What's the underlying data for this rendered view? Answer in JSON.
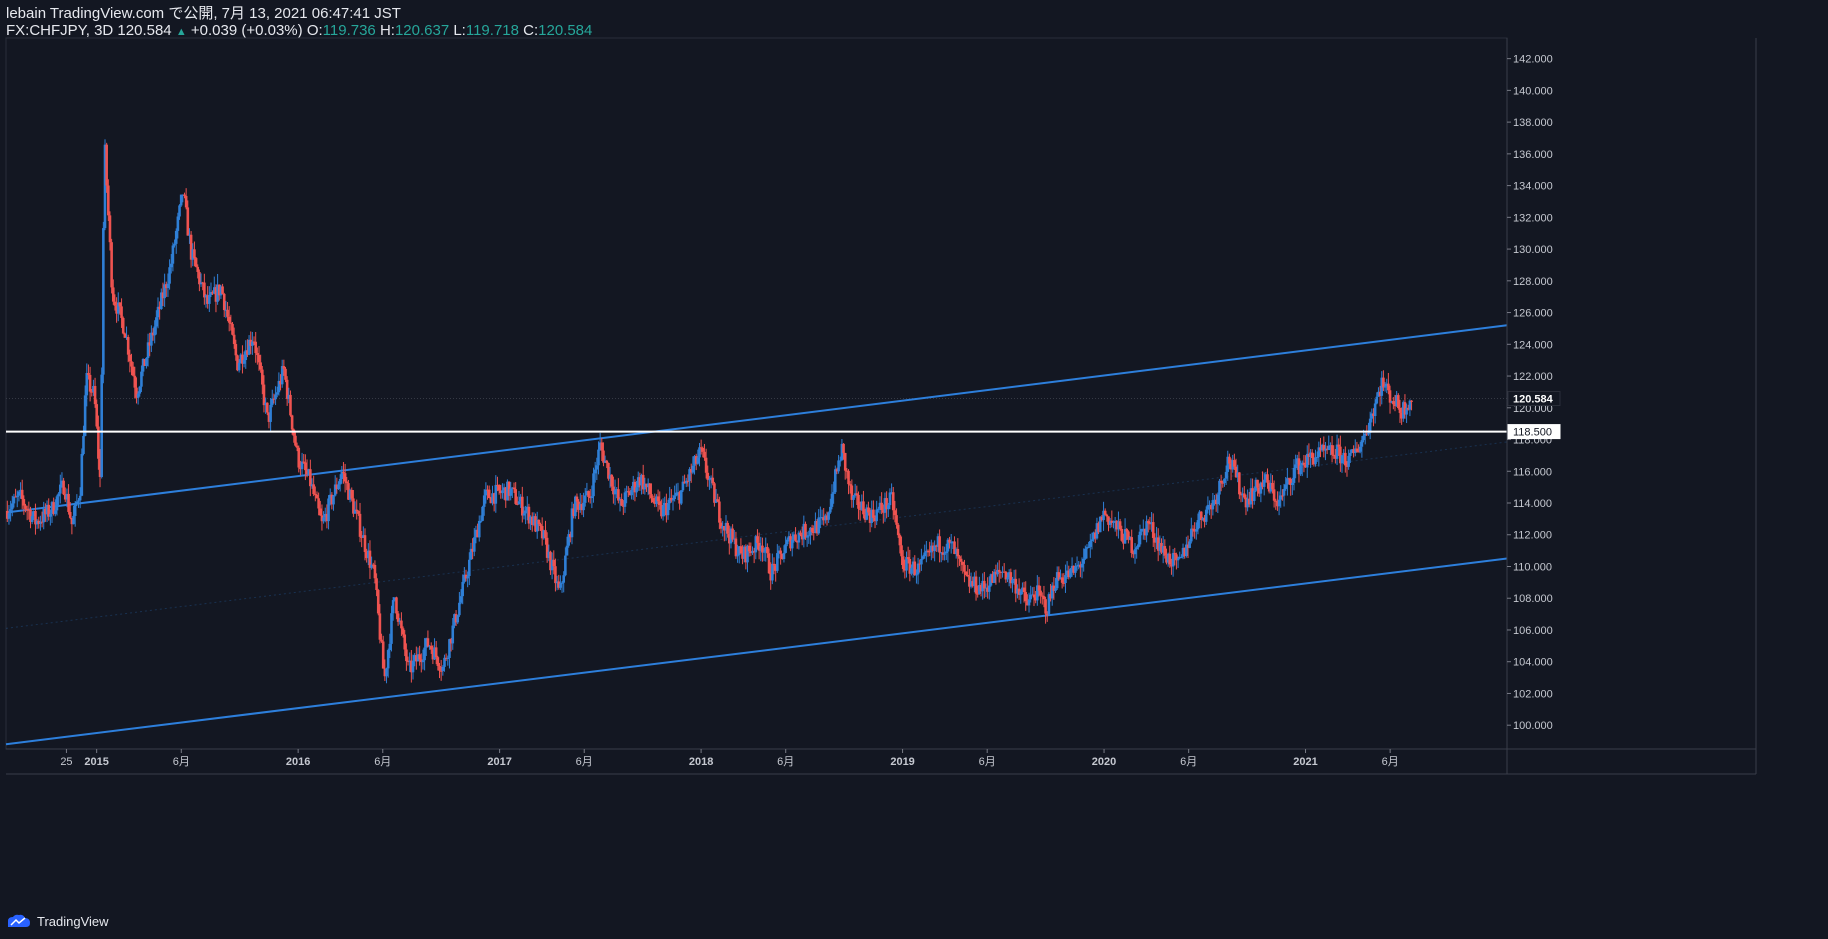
{
  "header": {
    "line1": "lebain TradingView.com で公開, 7月 13, 2021 06:47:41 JST",
    "symbol": "FX:CHFJPY, 3D",
    "last": "120.584",
    "change": "+0.039 (+0.03%)",
    "o_label": "O:",
    "o_value": "119.736",
    "h_label": "H:",
    "h_value": "120.637",
    "l_label": "L:",
    "l_value": "119.718",
    "c_label": "C:",
    "c_value": "120.584"
  },
  "footer": {
    "brand": "TradingView"
  },
  "colors": {
    "background": "#131722",
    "up": "#2f7fd6",
    "down": "#ef5350",
    "trendline": "#2d7fdc",
    "hline": "#ffffff",
    "axis_text": "#c5c8d0",
    "teal": "#26a69a"
  },
  "chart_data": {
    "type": "candlestick",
    "symbol": "FX:CHFJPY",
    "timeframe": "3D",
    "ylim": [
      98.5,
      143.3
    ],
    "y_ticks": [
      100,
      102,
      104,
      106,
      108,
      110,
      112,
      114,
      116,
      118,
      120,
      122,
      124,
      126,
      128,
      130,
      132,
      134,
      136,
      138,
      140,
      142
    ],
    "x_ticks": [
      {
        "label": "25",
        "t": 2014.85
      },
      {
        "label": "2015",
        "t": 2015.0
      },
      {
        "label": "6月",
        "t": 2015.42
      },
      {
        "label": "2016",
        "t": 2016.0
      },
      {
        "label": "6月",
        "t": 2016.42
      },
      {
        "label": "2017",
        "t": 2017.0
      },
      {
        "label": "6月",
        "t": 2017.42
      },
      {
        "label": "2018",
        "t": 2018.0
      },
      {
        "label": "6月",
        "t": 2018.42
      },
      {
        "label": "2019",
        "t": 2019.0
      },
      {
        "label": "6月",
        "t": 2019.42
      },
      {
        "label": "2020",
        "t": 2020.0
      },
      {
        "label": "6月",
        "t": 2020.42
      },
      {
        "label": "2021",
        "t": 2021.0
      },
      {
        "label": "6月",
        "t": 2021.42
      }
    ],
    "price_labels": [
      {
        "value": 120.584,
        "text": "120.584",
        "style": "last"
      },
      {
        "value": 118.5,
        "text": "118.500",
        "style": "hline"
      }
    ],
    "horizontal_lines": [
      118.5
    ],
    "trendlines": [
      {
        "name": "channel-upper",
        "t1": 2014.55,
        "p1": 113.4,
        "t2": 2022.0,
        "p2": 125.2
      },
      {
        "name": "channel-lower",
        "t1": 2014.55,
        "p1": 98.8,
        "t2": 2022.0,
        "p2": 110.5
      },
      {
        "name": "channel-mid",
        "t1": 2014.55,
        "p1": 106.1,
        "t2": 2022.0,
        "p2": 117.85,
        "faint": true
      }
    ],
    "price_path": [
      [
        2014.55,
        113.5
      ],
      [
        2014.62,
        114.4
      ],
      [
        2014.7,
        112.8
      ],
      [
        2014.78,
        113.6
      ],
      [
        2014.84,
        115.2
      ],
      [
        2014.88,
        112.6
      ],
      [
        2014.92,
        115.0
      ],
      [
        2014.95,
        121.8
      ],
      [
        2014.99,
        120.8
      ],
      [
        2015.02,
        115.2
      ],
      [
        2015.04,
        136.8
      ],
      [
        2015.08,
        127.2
      ],
      [
        2015.14,
        125.0
      ],
      [
        2015.2,
        121.0
      ],
      [
        2015.3,
        125.6
      ],
      [
        2015.37,
        129.0
      ],
      [
        2015.43,
        133.6
      ],
      [
        2015.47,
        129.8
      ],
      [
        2015.55,
        126.5
      ],
      [
        2015.62,
        127.6
      ],
      [
        2015.7,
        122.8
      ],
      [
        2015.78,
        124.6
      ],
      [
        2015.85,
        119.2
      ],
      [
        2015.93,
        122.4
      ],
      [
        2016.0,
        116.8
      ],
      [
        2016.06,
        115.4
      ],
      [
        2016.12,
        112.6
      ],
      [
        2016.22,
        116.0
      ],
      [
        2016.3,
        112.8
      ],
      [
        2016.38,
        109.4
      ],
      [
        2016.43,
        102.8
      ],
      [
        2016.48,
        108.2
      ],
      [
        2016.55,
        103.4
      ],
      [
        2016.65,
        105.2
      ],
      [
        2016.72,
        103.6
      ],
      [
        2016.82,
        108.6
      ],
      [
        2016.93,
        114.4
      ],
      [
        2017.05,
        114.8
      ],
      [
        2017.15,
        113.2
      ],
      [
        2017.22,
        111.8
      ],
      [
        2017.3,
        108.2
      ],
      [
        2017.37,
        113.8
      ],
      [
        2017.45,
        114.4
      ],
      [
        2017.5,
        117.6
      ],
      [
        2017.6,
        113.8
      ],
      [
        2017.7,
        115.6
      ],
      [
        2017.8,
        113.4
      ],
      [
        2017.9,
        114.6
      ],
      [
        2018.0,
        117.2
      ],
      [
        2018.1,
        113.0
      ],
      [
        2018.2,
        110.6
      ],
      [
        2018.3,
        111.6
      ],
      [
        2018.35,
        109.6
      ],
      [
        2018.45,
        111.8
      ],
      [
        2018.55,
        112.4
      ],
      [
        2018.62,
        112.8
      ],
      [
        2018.7,
        117.4
      ],
      [
        2018.75,
        114.2
      ],
      [
        2018.85,
        113.2
      ],
      [
        2018.95,
        114.2
      ],
      [
        2019.0,
        110.2
      ],
      [
        2019.08,
        109.8
      ],
      [
        2019.18,
        111.4
      ],
      [
        2019.25,
        111.2
      ],
      [
        2019.32,
        109.0
      ],
      [
        2019.4,
        108.6
      ],
      [
        2019.5,
        109.8
      ],
      [
        2019.58,
        108.6
      ],
      [
        2019.62,
        107.6
      ],
      [
        2019.66,
        108.4
      ],
      [
        2019.72,
        107.4
      ],
      [
        2019.76,
        109.2
      ],
      [
        2019.85,
        109.6
      ],
      [
        2019.92,
        110.8
      ],
      [
        2020.0,
        113.4
      ],
      [
        2020.08,
        112.2
      ],
      [
        2020.15,
        111.2
      ],
      [
        2020.22,
        112.8
      ],
      [
        2020.3,
        110.8
      ],
      [
        2020.37,
        110.0
      ],
      [
        2020.45,
        112.6
      ],
      [
        2020.55,
        114.2
      ],
      [
        2020.62,
        116.8
      ],
      [
        2020.7,
        114.2
      ],
      [
        2020.8,
        115.4
      ],
      [
        2020.87,
        114.0
      ],
      [
        2020.95,
        116.2
      ],
      [
        2021.05,
        117.0
      ],
      [
        2021.15,
        117.2
      ],
      [
        2021.22,
        116.6
      ],
      [
        2021.3,
        118.4
      ],
      [
        2021.38,
        121.6
      ],
      [
        2021.42,
        120.8
      ],
      [
        2021.48,
        119.8
      ],
      [
        2021.52,
        120.6
      ]
    ]
  }
}
